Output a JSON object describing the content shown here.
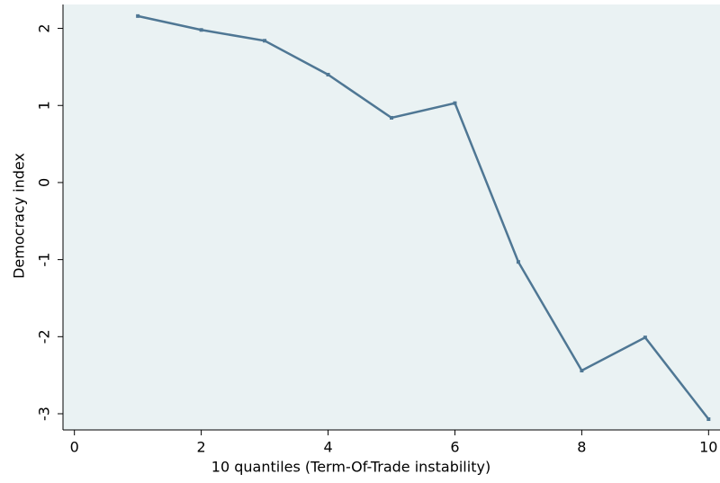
{
  "chart_data": {
    "type": "line",
    "x_label": "10 quantiles (Term-Of-Trade instability)",
    "y_label": "Democracy index",
    "series": [
      {
        "color": "#4f7794",
        "x": [
          1,
          2,
          3,
          4,
          5,
          6,
          7,
          8,
          9,
          10
        ],
        "values": [
          2.16,
          1.98,
          1.84,
          1.4,
          0.84,
          1.03,
          -1.03,
          -2.44,
          -2.01,
          -3.07
        ]
      }
    ],
    "xlim": [
      -0.18,
      10.18
    ],
    "ylim": [
      -3.21,
      2.31
    ],
    "xticks": [
      0,
      2,
      4,
      6,
      8,
      10
    ],
    "yticks": [
      -3,
      -2,
      -1,
      0,
      1,
      2
    ],
    "background": "#eaf2f3"
  }
}
